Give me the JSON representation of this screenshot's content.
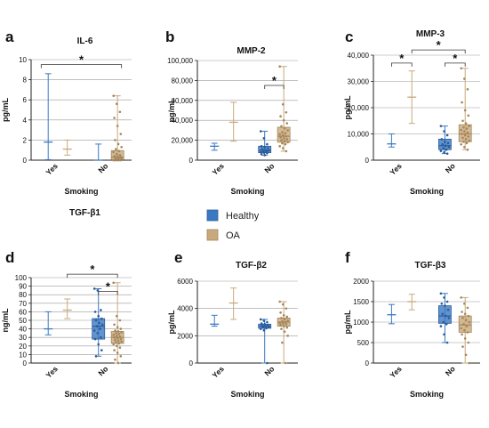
{
  "colors": {
    "healthy": "#3a78c2",
    "oa": "#c9a97b",
    "grid": "#9a9a9a"
  },
  "legend": [
    {
      "name": "Healthy",
      "color": "#3a78c2"
    },
    {
      "name": "OA",
      "color": "#c9a97b"
    }
  ],
  "chart_data": [
    {
      "letter": "a",
      "title": "IL-6",
      "type": "box",
      "ylabel": "pg/mL",
      "xlabel": "Smoking",
      "categories": [
        "Yes",
        "No"
      ],
      "ylim": [
        0,
        10
      ],
      "yticks": [
        0,
        2,
        4,
        6,
        8,
        10
      ],
      "ytick_labels": [
        "0",
        "2",
        "4",
        "6",
        "8",
        "10"
      ],
      "groups": [
        {
          "category": "Yes",
          "series": "Healthy",
          "style": "range",
          "min": 0.05,
          "q1": 1.8,
          "median": 1.8,
          "q3": 1.8,
          "max": 8.6,
          "points": []
        },
        {
          "category": "Yes",
          "series": "OA",
          "style": "range",
          "min": 0.5,
          "q1": 1.1,
          "median": 1.1,
          "q3": 1.1,
          "max": 2.0,
          "points": []
        },
        {
          "category": "No",
          "series": "Healthy",
          "style": "range",
          "min": 0.0,
          "q1": 0.0,
          "median": 0.0,
          "q3": 0.0,
          "max": 1.6,
          "points": []
        },
        {
          "category": "No",
          "series": "OA",
          "style": "box",
          "min": 0.0,
          "q1": 0.05,
          "median": 0.3,
          "q3": 0.95,
          "max": 6.4,
          "points": [
            6.4,
            5.6,
            4.8,
            4.2,
            3.4,
            2.6,
            2.0,
            1.6,
            1.3,
            1.1,
            0.9,
            0.8,
            0.6,
            0.5,
            0.4,
            0.35,
            0.3,
            0.25,
            0.2,
            0.15,
            0.1,
            0.05,
            0.0,
            0.0,
            0.0,
            0.0,
            0.0,
            0.0,
            0.0,
            0.0
          ]
        }
      ],
      "significance": [
        {
          "from": "Yes",
          "to": "No",
          "y": 9.5
        }
      ]
    },
    {
      "letter": "b",
      "title": "MMP-2",
      "type": "box",
      "ylabel": "pg/mL",
      "xlabel": "Smoking",
      "categories": [
        "Yes",
        "No"
      ],
      "ylim": [
        0,
        100000
      ],
      "yticks": [
        0,
        20000,
        40000,
        60000,
        80000,
        100000
      ],
      "ytick_labels": [
        "0",
        "20,000",
        "40,000",
        "60,000",
        "80,000",
        "100,000"
      ],
      "groups": [
        {
          "category": "Yes",
          "series": "Healthy",
          "style": "range",
          "min": 10000,
          "q1": 14000,
          "median": 14000,
          "q3": 14000,
          "max": 17000,
          "points": []
        },
        {
          "category": "Yes",
          "series": "OA",
          "style": "range",
          "min": 19000,
          "q1": 38000,
          "median": 38000,
          "q3": 38000,
          "max": 58000,
          "points": []
        },
        {
          "category": "No",
          "series": "Healthy",
          "style": "box",
          "min": 5000,
          "q1": 7500,
          "median": 10000,
          "q3": 14000,
          "max": 29000,
          "points": [
            29000,
            22000,
            16000,
            14000,
            13000,
            12000,
            11000,
            10000,
            9500,
            9000,
            8500,
            8000,
            7500,
            7000,
            6000,
            5000
          ]
        },
        {
          "category": "No",
          "series": "OA",
          "style": "box",
          "min": 9000,
          "q1": 18000,
          "median": 24000,
          "q3": 33000,
          "max": 94000,
          "points": [
            94000,
            56000,
            48000,
            44000,
            40000,
            37000,
            34000,
            32000,
            30000,
            28000,
            27000,
            26000,
            25000,
            24000,
            23000,
            22000,
            21000,
            20000,
            19000,
            18000,
            17000,
            16000,
            14000,
            12000,
            9000
          ]
        }
      ],
      "significance": [
        {
          "from": "No-Healthy",
          "to": "No-OA",
          "y": 75000
        }
      ]
    },
    {
      "letter": "c",
      "title": "MMP-3",
      "type": "box",
      "ylabel": "pg/mL",
      "xlabel": "Smoking",
      "categories": [
        "Yes",
        "No"
      ],
      "ylim": [
        0,
        40000
      ],
      "yticks": [
        0,
        10000,
        20000,
        30000,
        40000
      ],
      "ytick_labels": [
        "0",
        "10,000",
        "20,000",
        "30,000",
        "40,000"
      ],
      "groups": [
        {
          "category": "Yes",
          "series": "Healthy",
          "style": "range",
          "min": 5000,
          "q1": 6200,
          "median": 6200,
          "q3": 6200,
          "max": 10000,
          "points": []
        },
        {
          "category": "Yes",
          "series": "OA",
          "style": "range",
          "min": 14000,
          "q1": 24000,
          "median": 24000,
          "q3": 24000,
          "max": 34000,
          "points": []
        },
        {
          "category": "No",
          "series": "Healthy",
          "style": "box",
          "min": 2500,
          "q1": 4000,
          "median": 5500,
          "q3": 8000,
          "max": 13000,
          "points": [
            13000,
            11000,
            9500,
            8000,
            7000,
            6500,
            6000,
            5500,
            5000,
            4500,
            4000,
            3500,
            3000,
            2500
          ]
        },
        {
          "category": "No",
          "series": "OA",
          "style": "box",
          "min": 4000,
          "q1": 7000,
          "median": 10000,
          "q3": 13500,
          "max": 35000,
          "points": [
            35000,
            31000,
            27000,
            22000,
            19000,
            17000,
            15000,
            14000,
            13000,
            12500,
            12000,
            11500,
            11000,
            10500,
            10000,
            9500,
            9000,
            8500,
            8000,
            7500,
            7000,
            6500,
            6000,
            5000,
            4000
          ]
        }
      ],
      "significance": [
        {
          "from": "Yes-Healthy",
          "to": "Yes-OA",
          "y": 37000
        },
        {
          "from": "No-Healthy",
          "to": "No-OA",
          "y": 37000
        },
        {
          "from": "Yes-OA",
          "to": "No-OA",
          "y": 42000
        }
      ]
    },
    {
      "letter": "d",
      "title": "TGF-β1",
      "type": "box",
      "ylabel": "ng/mL",
      "xlabel": "Smoking",
      "categories": [
        "Yes",
        "No"
      ],
      "ylim": [
        0,
        100
      ],
      "yticks": [
        0,
        10,
        20,
        30,
        40,
        50,
        60,
        70,
        80,
        90,
        100
      ],
      "ytick_labels": [
        "0",
        "10",
        "20",
        "30",
        "40",
        "50",
        "60",
        "70",
        "80",
        "90",
        "100"
      ],
      "groups": [
        {
          "category": "Yes",
          "series": "Healthy",
          "style": "range",
          "min": 33,
          "q1": 40,
          "median": 40,
          "q3": 40,
          "max": 60,
          "points": []
        },
        {
          "category": "Yes",
          "series": "OA",
          "style": "range",
          "min": 52,
          "q1": 62,
          "median": 62,
          "q3": 62,
          "max": 75,
          "points": []
        },
        {
          "category": "No",
          "series": "Healthy",
          "style": "box",
          "min": 8,
          "q1": 28,
          "median": 43,
          "q3": 52,
          "max": 87,
          "points": [
            87,
            85,
            62,
            60,
            55,
            52,
            50,
            47,
            45,
            43,
            40,
            38,
            35,
            30,
            28,
            22,
            15,
            8
          ]
        },
        {
          "category": "No",
          "series": "OA",
          "style": "box",
          "min": 0,
          "q1": 23,
          "median": 30,
          "q3": 37,
          "max": 94,
          "points": [
            94,
            55,
            50,
            45,
            42,
            40,
            38,
            37,
            36,
            35,
            34,
            33,
            32,
            31,
            30,
            29,
            28,
            27,
            26,
            25,
            24,
            23,
            22,
            20,
            18,
            15,
            12,
            8,
            4,
            0
          ]
        }
      ],
      "significance": [
        {
          "from": "No-Healthy",
          "to": "No-OA",
          "y": 84
        },
        {
          "from": "Yes-OA",
          "to": "No-OA",
          "y": 104
        }
      ]
    },
    {
      "letter": "e",
      "title": "TGF-β2",
      "type": "box",
      "ylabel": "pg/mL",
      "xlabel": "Smoking",
      "categories": [
        "Yes",
        "No"
      ],
      "ylim": [
        0,
        6000
      ],
      "yticks": [
        0,
        2000,
        4000,
        6000
      ],
      "ytick_labels": [
        "0",
        "2000",
        "4000",
        "6000"
      ],
      "groups": [
        {
          "category": "Yes",
          "series": "Healthy",
          "style": "range",
          "min": 2700,
          "q1": 2850,
          "median": 2850,
          "q3": 2850,
          "max": 3500,
          "points": []
        },
        {
          "category": "Yes",
          "series": "OA",
          "style": "range",
          "min": 3200,
          "q1": 4400,
          "median": 4400,
          "q3": 4400,
          "max": 5500,
          "points": []
        },
        {
          "category": "No",
          "series": "Healthy",
          "style": "box",
          "min": 0,
          "q1": 2550,
          "median": 2700,
          "q3": 2850,
          "max": 3200,
          "points": [
            3200,
            3100,
            3000,
            2900,
            2850,
            2800,
            2750,
            2700,
            2650,
            2600,
            2550,
            2500,
            2400,
            0
          ]
        },
        {
          "category": "No",
          "series": "OA",
          "style": "box",
          "min": 0,
          "q1": 2700,
          "median": 3000,
          "q3": 3300,
          "max": 4500,
          "points": [
            4500,
            4300,
            4000,
            3700,
            3500,
            3400,
            3300,
            3200,
            3100,
            3050,
            3000,
            2950,
            2900,
            2850,
            2800,
            2700,
            2600,
            2500,
            2300,
            2000,
            1500,
            0
          ]
        }
      ],
      "significance": []
    },
    {
      "letter": "f",
      "title": "TGF-β3",
      "type": "box",
      "ylabel": "pg/mL",
      "xlabel": "Smoking",
      "categories": [
        "Yes",
        "No"
      ],
      "ylim": [
        0,
        2000
      ],
      "yticks": [
        0,
        500,
        1000,
        1500,
        2000
      ],
      "ytick_labels": [
        "0",
        "500",
        "1000",
        "1500",
        "2000"
      ],
      "groups": [
        {
          "category": "Yes",
          "series": "Healthy",
          "style": "range",
          "min": 960,
          "q1": 1180,
          "median": 1180,
          "q3": 1180,
          "max": 1430,
          "points": []
        },
        {
          "category": "Yes",
          "series": "OA",
          "style": "range",
          "min": 1300,
          "q1": 1500,
          "median": 1500,
          "q3": 1500,
          "max": 1680,
          "points": []
        },
        {
          "category": "No",
          "series": "Healthy",
          "style": "box",
          "min": 500,
          "q1": 970,
          "median": 1150,
          "q3": 1400,
          "max": 1700,
          "points": [
            1700,
            1600,
            1500,
            1450,
            1400,
            1300,
            1200,
            1150,
            1100,
            1000,
            950,
            900,
            700,
            500
          ]
        },
        {
          "category": "No",
          "series": "OA",
          "style": "box",
          "min": 0,
          "q1": 750,
          "median": 930,
          "q3": 1150,
          "max": 1600,
          "points": [
            1600,
            1450,
            1350,
            1250,
            1200,
            1150,
            1100,
            1050,
            1000,
            950,
            900,
            850,
            800,
            750,
            700,
            600,
            500,
            400,
            200,
            0
          ]
        }
      ],
      "significance": []
    }
  ]
}
